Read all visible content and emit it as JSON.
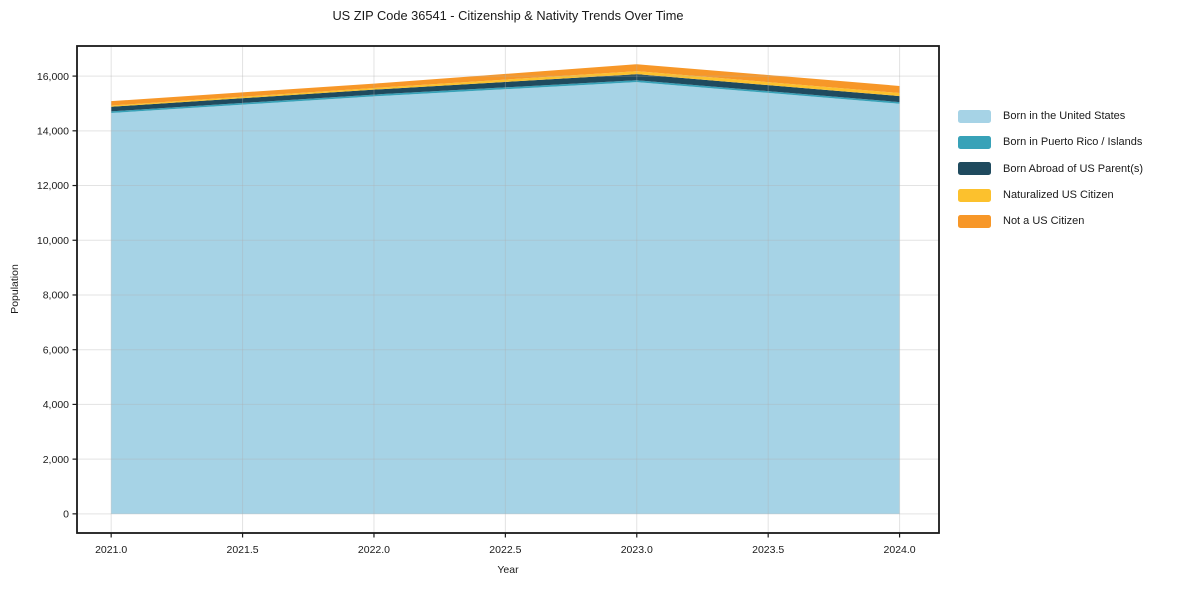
{
  "chart_data": {
    "type": "area",
    "stacked": true,
    "title": "US ZIP Code 36541 - Citizenship & Nativity Trends Over Time",
    "xlabel": "Year",
    "ylabel": "Population",
    "x": [
      2021,
      2022,
      2023,
      2024
    ],
    "series": [
      {
        "name": "Born in the United States",
        "color": "#A6D3E6",
        "values": [
          14650,
          15260,
          15780,
          14990
        ]
      },
      {
        "name": "Born in Puerto Rico / Islands",
        "color": "#38A2B8",
        "values": [
          60,
          65,
          70,
          60
        ]
      },
      {
        "name": "Born Abroad of US Parent(s)",
        "color": "#1F4A5E",
        "values": [
          170,
          180,
          220,
          220
        ]
      },
      {
        "name": "Naturalized US Citizen",
        "color": "#FCC12D",
        "values": [
          45,
          60,
          110,
          110
        ]
      },
      {
        "name": "Not a US Citizen",
        "color": "#F79728",
        "values": [
          160,
          160,
          255,
          260
        ]
      }
    ],
    "xticks": [
      2021.0,
      2021.5,
      2022.0,
      2022.5,
      2023.0,
      2023.5,
      2024.0
    ],
    "xtick_labels": [
      "2021.0",
      "2021.5",
      "2022.0",
      "2022.5",
      "2023.0",
      "2023.5",
      "2024.0"
    ],
    "yticks": [
      0,
      2000,
      4000,
      6000,
      8000,
      10000,
      12000,
      14000,
      16000
    ],
    "ytick_labels": [
      "0",
      "2,000",
      "4,000",
      "6,000",
      "8,000",
      "10,000",
      "12,000",
      "14,000",
      "16,000"
    ],
    "xlim": [
      2020.87,
      2024.15
    ],
    "ylim": [
      -700,
      17100
    ],
    "grid": true,
    "legend_position": "right",
    "grid_color": "#b0b0b0",
    "spine_color": "#1a1a1a",
    "background_color": "#ffffff"
  }
}
